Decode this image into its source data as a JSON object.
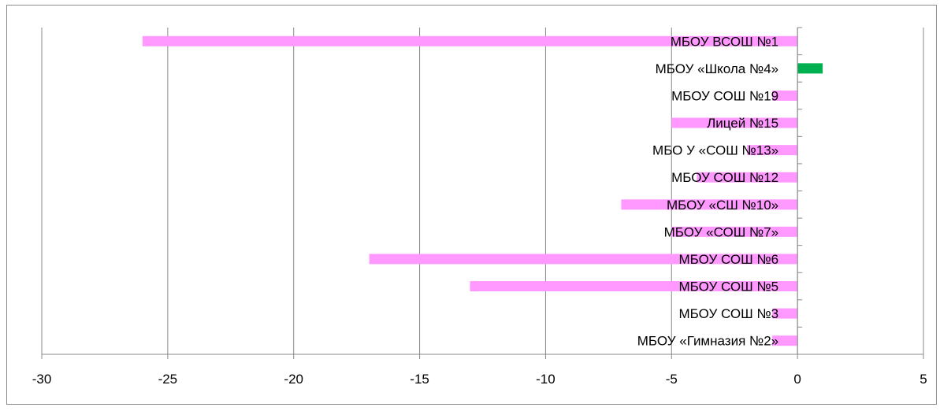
{
  "chart_data": {
    "type": "bar",
    "orientation": "horizontal",
    "categories": [
      "МБОУ ВСОШ №1",
      "МБОУ «Школа №4»",
      "МБОУ СОШ №19",
      "Лицей №15",
      "МБО У «СОШ №13»",
      "МБОУ СОШ №12",
      "МБОУ «СШ №10»",
      "МБОУ «СОШ №7»",
      "МБОУ СОШ №6",
      "МБОУ СОШ №5",
      "МБОУ СОШ №3",
      "МБОУ «Гимназия №2»"
    ],
    "values": [
      -26,
      1,
      -1,
      -5,
      -2,
      -4,
      -7,
      -5,
      -17,
      -13,
      -1,
      -1
    ],
    "xlim": [
      -30,
      5
    ],
    "xticks": [
      "-30",
      "-25",
      "-20",
      "-15",
      "-10",
      "-5",
      "0",
      "5"
    ],
    "grid": true,
    "legend": false,
    "title": "",
    "xlabel": "",
    "ylabel": "",
    "colors": {
      "negative": "#FF99FF",
      "positive": "#00B050",
      "grid": "#888888",
      "axis": "#888888"
    }
  }
}
